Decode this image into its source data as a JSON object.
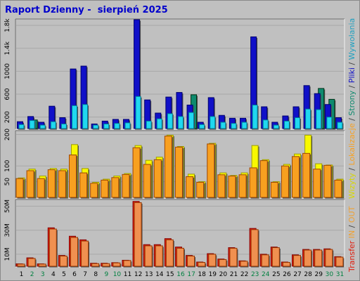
{
  "title": "Raport Dzienny -  sierpień 2025",
  "colors": {
    "background": "#c0c0c0",
    "panel": "#c0c0c0",
    "grid": "#a8a8a8",
    "wizyty": "#f8f800",
    "strony": "#0e8a6e",
    "pliki": "#1010c8",
    "wywolania": "#20d8f0",
    "lokalizacje": "#f8a020",
    "kb_in": "#e02010",
    "kb_out": "#f09050",
    "weekend_label": "#008040",
    "weekday_label": "#000000"
  },
  "legend_right": [
    {
      "text": "Wizyty",
      "color": "#d8d800"
    },
    {
      "text": " / ",
      "color": "#404040"
    },
    {
      "text": "Lokalizacje",
      "color": "#f8a020"
    },
    {
      "text": " / ",
      "color": "#404040"
    },
    {
      "text": "Strony",
      "color": "#0e8a6e"
    },
    {
      "text": " / ",
      "color": "#404040"
    },
    {
      "text": "Pliki",
      "color": "#1010c8"
    },
    {
      "text": " / ",
      "color": "#404040"
    },
    {
      "text": "Wywołania",
      "color": "#20a0c0"
    }
  ],
  "legend_transfer": [
    {
      "text": "Transfer",
      "color": "#e02010"
    },
    {
      "text": " IN ",
      "color": "#f0a030"
    },
    {
      "text": "/",
      "color": "#404040"
    },
    {
      "text": " OUT",
      "color": "#f0a030"
    }
  ],
  "chart_data": [
    {
      "type": "bar",
      "name": "top",
      "ytick_labels": [
        "200",
        "600",
        "1000",
        "1.4k",
        "1.8k"
      ],
      "ytick_values": [
        200,
        600,
        1000,
        1400,
        1800
      ],
      "ylim": [
        0,
        1900
      ],
      "days": [
        1,
        2,
        3,
        4,
        5,
        6,
        7,
        8,
        9,
        10,
        11,
        12,
        13,
        14,
        15,
        16,
        17,
        18,
        19,
        20,
        21,
        22,
        23,
        24,
        25,
        26,
        27,
        28,
        29,
        30,
        31
      ],
      "series": [
        {
          "name": "Wywołania",
          "values": [
            70,
            140,
            60,
            120,
            80,
            400,
            420,
            60,
            80,
            90,
            100,
            560,
            130,
            170,
            260,
            210,
            280,
            70,
            210,
            110,
            90,
            110,
            410,
            150,
            60,
            130,
            190,
            340,
            330,
            200,
            110
          ]
        },
        {
          "name": "Pliki",
          "values": [
            120,
            210,
            110,
            390,
            190,
            1040,
            1090,
            80,
            130,
            160,
            160,
            1900,
            500,
            270,
            550,
            630,
            410,
            110,
            540,
            230,
            180,
            180,
            1600,
            380,
            110,
            220,
            380,
            750,
            610,
            420,
            190
          ]
        },
        {
          "name": "Strony",
          "values": [
            0,
            150,
            0,
            0,
            0,
            0,
            0,
            0,
            0,
            0,
            0,
            0,
            0,
            0,
            0,
            0,
            590,
            0,
            0,
            0,
            0,
            0,
            0,
            0,
            0,
            0,
            0,
            0,
            700,
            510,
            0
          ]
        }
      ]
    },
    {
      "type": "bar",
      "name": "middle",
      "ytick_labels": [
        "50",
        "100",
        "200"
      ],
      "ytick_values": [
        50,
        100,
        200
      ],
      "ylim": [
        0,
        210
      ],
      "days": [
        1,
        2,
        3,
        4,
        5,
        6,
        7,
        8,
        9,
        10,
        11,
        12,
        13,
        14,
        15,
        16,
        17,
        18,
        19,
        20,
        21,
        22,
        23,
        24,
        25,
        26,
        27,
        28,
        29,
        30,
        31
      ],
      "series": [
        {
          "name": "Wizyty",
          "values": [
            62,
            90,
            68,
            92,
            90,
            168,
            92,
            48,
            58,
            68,
            76,
            165,
            118,
            128,
            198,
            162,
            74,
            50,
            172,
            78,
            70,
            78,
            165,
            120,
            50,
            105,
            138,
            198,
            107,
            103,
            58
          ]
        },
        {
          "name": "Lokalizacje",
          "values": [
            60,
            85,
            60,
            88,
            85,
            135,
            78,
            45,
            55,
            63,
            73,
            158,
            105,
            120,
            195,
            160,
            66,
            48,
            170,
            72,
            68,
            72,
            94,
            117,
            48,
            100,
            130,
            140,
            90,
            102,
            55
          ]
        }
      ]
    },
    {
      "type": "bar",
      "name": "bottom",
      "ytick_labels": [
        "10M",
        "30M",
        "50M"
      ],
      "ytick_values": [
        10,
        30,
        50
      ],
      "ylim": [
        0,
        55
      ],
      "x_labels": [
        "1",
        "2",
        "3",
        "4",
        "5",
        "6",
        "7",
        "8",
        "9",
        "10",
        "11",
        "12",
        "13",
        "14",
        "15",
        "16",
        "17",
        "18",
        "19",
        "20",
        "21",
        "22",
        "23",
        "24",
        "25",
        "26",
        "27",
        "28",
        "29",
        "30",
        "31"
      ],
      "weekend_days": [
        2,
        3,
        9,
        10,
        16,
        17,
        23,
        24,
        30,
        31
      ],
      "series": [
        {
          "name": "KB F",
          "values": [
            2.0,
            7.0,
            2.0,
            32.0,
            9.0,
            25.0,
            22.0,
            2.5,
            2.5,
            3.0,
            5.0,
            54.0,
            18.0,
            18.0,
            23.0,
            16.0,
            9.0,
            3.5,
            10.5,
            6.0,
            15.5,
            4.5,
            31.5,
            10.0,
            16.0,
            3.5,
            9.5,
            14.0,
            14.0,
            14.5,
            8.0
          ]
        },
        {
          "name": "KB",
          "values": [
            1.8,
            6.5,
            1.8,
            31.0,
            8.5,
            24.0,
            21.0,
            2.2,
            2.2,
            2.8,
            4.8,
            53.0,
            17.0,
            17.0,
            22.0,
            15.0,
            8.5,
            3.2,
            10.0,
            5.6,
            15.0,
            4.2,
            30.5,
            9.5,
            15.5,
            3.2,
            9.0,
            13.5,
            13.5,
            14.0,
            7.6
          ]
        }
      ]
    }
  ]
}
